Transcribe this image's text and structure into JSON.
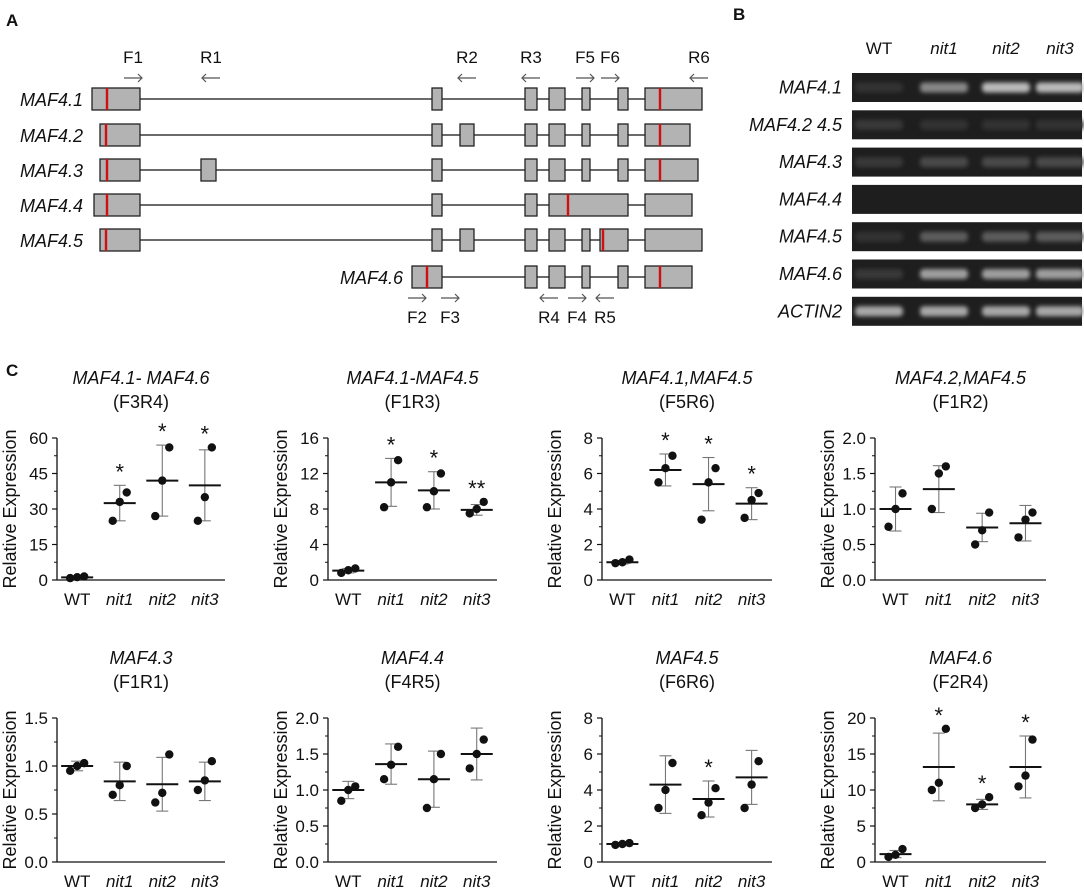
{
  "panels": {
    "a": "A",
    "b": "B",
    "c": "C"
  },
  "panel_a": {
    "transcripts": [
      {
        "name": "MAF4.1",
        "exons": [
          [
            92,
            140
          ],
          [
            432,
            442
          ],
          [
            525,
            537
          ],
          [
            549,
            565
          ],
          [
            582,
            590
          ],
          [
            618,
            628
          ],
          [
            645,
            702
          ]
        ],
        "marks": [
          107,
          660
        ]
      },
      {
        "name": "MAF4.2",
        "exons": [
          [
            100,
            140
          ],
          [
            432,
            442
          ],
          [
            460,
            474
          ],
          [
            525,
            537
          ],
          [
            549,
            565
          ],
          [
            582,
            590
          ],
          [
            618,
            628
          ],
          [
            645,
            690
          ]
        ],
        "marks": [
          106,
          660
        ]
      },
      {
        "name": "MAF4.3",
        "exons": [
          [
            100,
            140
          ],
          [
            201,
            216
          ],
          [
            432,
            442
          ],
          [
            525,
            537
          ],
          [
            549,
            565
          ],
          [
            582,
            590
          ],
          [
            618,
            628
          ],
          [
            645,
            698
          ]
        ],
        "marks": [
          107,
          660
        ]
      },
      {
        "name": "MAF4.4",
        "exons": [
          [
            94,
            140
          ],
          [
            432,
            442
          ],
          [
            525,
            537
          ],
          [
            549,
            628
          ],
          [
            645,
            692
          ]
        ],
        "marks": [
          107,
          568
        ]
      },
      {
        "name": "MAF4.5",
        "exons": [
          [
            100,
            140
          ],
          [
            432,
            442
          ],
          [
            460,
            474
          ],
          [
            525,
            537
          ],
          [
            549,
            565
          ],
          [
            582,
            590
          ],
          [
            600,
            628
          ],
          [
            645,
            702
          ]
        ],
        "marks": [
          106,
          603
        ]
      },
      {
        "name": "MAF4.6",
        "exons": [
          [
            412,
            442
          ],
          [
            525,
            537
          ],
          [
            549,
            565
          ],
          [
            582,
            590
          ],
          [
            618,
            628
          ],
          [
            645,
            692
          ]
        ],
        "marks": [
          427,
          660
        ]
      }
    ],
    "primers_top": [
      {
        "label": "F1",
        "x": 133,
        "dir": "right"
      },
      {
        "label": "R1",
        "x": 211,
        "dir": "left"
      },
      {
        "label": "R2",
        "x": 467,
        "dir": "left"
      },
      {
        "label": "R3",
        "x": 531,
        "dir": "left"
      },
      {
        "label": "F5",
        "x": 585,
        "dir": "right"
      },
      {
        "label": "F6",
        "x": 610,
        "dir": "right"
      },
      {
        "label": "R6",
        "x": 699,
        "dir": "left"
      }
    ],
    "primers_bottom": [
      {
        "label": "F2",
        "x": 417,
        "dir": "right"
      },
      {
        "label": "F3",
        "x": 450,
        "dir": "right"
      },
      {
        "label": "R4",
        "x": 549,
        "dir": "left"
      },
      {
        "label": "F4",
        "x": 577,
        "dir": "right"
      },
      {
        "label": "R5",
        "x": 605,
        "dir": "left"
      }
    ]
  },
  "panel_b": {
    "lanes": [
      "WT",
      "nit1",
      "nit2",
      "nit3"
    ],
    "genes": [
      "MAF4.1",
      "MAF4.2 4.5",
      "MAF4.3",
      "MAF4.4",
      "MAF4.5",
      "MAF4.6",
      "ACTIN2"
    ],
    "band_intensity": [
      [
        0.05,
        0.55,
        0.85,
        0.85
      ],
      [
        0.1,
        0.05,
        0.05,
        0.05
      ],
      [
        0.1,
        0.2,
        0.2,
        0.2
      ],
      [
        0.0,
        0.0,
        0.0,
        0.0
      ],
      [
        0.05,
        0.3,
        0.3,
        0.3
      ],
      [
        0.1,
        0.7,
        0.7,
        0.7
      ],
      [
        0.75,
        0.75,
        0.75,
        0.75
      ]
    ]
  },
  "chart_data": [
    {
      "type": "scatter",
      "title": "MAF4.1- MAF4.6",
      "subtitle": "(F3R4)",
      "ylabel": "Relative Expression",
      "categories": [
        "WT",
        "nit1",
        "nit2",
        "nit3"
      ],
      "yticks": [
        "0",
        "15",
        "30",
        "45",
        "60"
      ],
      "ylim": [
        0,
        60
      ],
      "points": [
        [
          0.8,
          1.2,
          1.5
        ],
        [
          25,
          33,
          37
        ],
        [
          27,
          42,
          56
        ],
        [
          25,
          35,
          56
        ]
      ],
      "mean": [
        1.1,
        32.5,
        42,
        40
      ],
      "sd": [
        0.3,
        7.5,
        15,
        15
      ],
      "sig": [
        "",
        "*",
        "*",
        "*"
      ]
    },
    {
      "type": "scatter",
      "title": "MAF4.1-MAF4.5",
      "subtitle": "(F1R3)",
      "ylabel": "Relative Expression",
      "categories": [
        "WT",
        "nit1",
        "nit2",
        "nit3"
      ],
      "yticks": [
        "0",
        "4",
        "8",
        "12",
        "16"
      ],
      "ylim": [
        0,
        16
      ],
      "points": [
        [
          0.8,
          1.1,
          1.3
        ],
        [
          8.2,
          11,
          13.5
        ],
        [
          8.2,
          10,
          12
        ],
        [
          7.5,
          8,
          8.8
        ]
      ],
      "mean": [
        1.05,
        11,
        10.1,
        7.9
      ],
      "sd": [
        0.25,
        2.7,
        2.1,
        0.6
      ],
      "sig": [
        "",
        "*",
        "*",
        "**"
      ]
    },
    {
      "type": "scatter",
      "title": "MAF4.1,MAF4.5",
      "subtitle": "(F5R6)",
      "ylabel": "Relative Expression",
      "categories": [
        "WT",
        "nit1",
        "nit2",
        "nit3"
      ],
      "yticks": [
        "0",
        "2",
        "4",
        "6",
        "8"
      ],
      "ylim": [
        0,
        8
      ],
      "points": [
        [
          0.95,
          1.0,
          1.15
        ],
        [
          5.5,
          6.3,
          7.0
        ],
        [
          3.4,
          5.5,
          6.3
        ],
        [
          3.5,
          4.5,
          4.9
        ]
      ],
      "mean": [
        1.0,
        6.2,
        5.4,
        4.3
      ],
      "sd": [
        0.1,
        0.9,
        1.5,
        0.9
      ],
      "sig": [
        "",
        "*",
        "*",
        "*"
      ]
    },
    {
      "type": "scatter",
      "title": "MAF4.2,MAF4.5",
      "subtitle": "(F1R2)",
      "ylabel": "Relative Expression",
      "categories": [
        "WT",
        "nit1",
        "nit2",
        "nit3"
      ],
      "yticks": [
        "0.0",
        "0.5",
        "1.0",
        "1.5",
        "2.0"
      ],
      "ylim": [
        0,
        2
      ],
      "points": [
        [
          0.75,
          1.0,
          1.22
        ],
        [
          1.0,
          1.5,
          1.6
        ],
        [
          0.5,
          0.7,
          0.95
        ],
        [
          0.6,
          0.85,
          0.95
        ]
      ],
      "mean": [
        1.0,
        1.28,
        0.74,
        0.8
      ],
      "sd": [
        0.31,
        0.33,
        0.2,
        0.25
      ],
      "sig": [
        "",
        "",
        "",
        ""
      ]
    },
    {
      "type": "scatter",
      "title": "MAF4.3",
      "subtitle": "(F1R1)",
      "ylabel": "Relative Expression",
      "categories": [
        "WT",
        "nit1",
        "nit2",
        "nit3"
      ],
      "yticks": [
        "0.0",
        "0.5",
        "1.0",
        "1.5"
      ],
      "ylim": [
        0,
        1.5
      ],
      "points": [
        [
          0.95,
          1.0,
          1.03
        ],
        [
          0.7,
          0.8,
          1.0
        ],
        [
          0.62,
          0.72,
          1.12
        ],
        [
          0.75,
          0.85,
          1.05
        ]
      ],
      "mean": [
        1.0,
        0.84,
        0.81,
        0.84
      ],
      "sd": [
        0.05,
        0.2,
        0.28,
        0.2
      ],
      "sig": [
        "",
        "",
        "",
        ""
      ]
    },
    {
      "type": "scatter",
      "title": "MAF4.4",
      "subtitle": "(F4R5)",
      "ylabel": "Relative Expression",
      "categories": [
        "WT",
        "nit1",
        "nit2",
        "nit3"
      ],
      "yticks": [
        "0.0",
        "0.5",
        "1.0",
        "1.5",
        "2.0"
      ],
      "ylim": [
        0,
        2
      ],
      "points": [
        [
          0.85,
          1.0,
          1.05
        ],
        [
          1.15,
          1.35,
          1.6
        ],
        [
          0.75,
          1.15,
          1.5
        ],
        [
          1.3,
          1.5,
          1.7
        ]
      ],
      "mean": [
        1.0,
        1.36,
        1.15,
        1.5
      ],
      "sd": [
        0.12,
        0.28,
        0.39,
        0.36
      ],
      "sig": [
        "",
        "",
        "",
        ""
      ]
    },
    {
      "type": "scatter",
      "title": "MAF4.5",
      "subtitle": "(F6R6)",
      "ylabel": "Relative Expression",
      "categories": [
        "WT",
        "nit1",
        "nit2",
        "nit3"
      ],
      "yticks": [
        "0",
        "2",
        "4",
        "6",
        "8"
      ],
      "ylim": [
        0,
        8
      ],
      "points": [
        [
          0.95,
          1.0,
          1.05
        ],
        [
          3.0,
          4.0,
          5.5
        ],
        [
          2.6,
          3.3,
          4.1
        ],
        [
          3.0,
          4.3,
          5.6
        ]
      ],
      "mean": [
        1.0,
        4.3,
        3.5,
        4.7
      ],
      "sd": [
        0.05,
        1.6,
        1.0,
        1.5
      ],
      "sig": [
        "",
        "",
        "*",
        ""
      ]
    },
    {
      "type": "scatter",
      "title": "MAF4.6",
      "subtitle": "(F2R4)",
      "ylabel": "Relative Expression",
      "categories": [
        "WT",
        "nit1",
        "nit2",
        "nit3"
      ],
      "yticks": [
        "0",
        "5",
        "10",
        "15",
        "20"
      ],
      "ylim": [
        0,
        20
      ],
      "points": [
        [
          0.7,
          1.0,
          1.8
        ],
        [
          10,
          11,
          18.5
        ],
        [
          7.5,
          8.0,
          9.0
        ],
        [
          10.5,
          12,
          17
        ]
      ],
      "mean": [
        1.1,
        13.2,
        8.0,
        13.2
      ],
      "sd": [
        0.5,
        4.7,
        0.7,
        4.3
      ],
      "sig": [
        "",
        "*",
        "*",
        "*"
      ]
    }
  ]
}
